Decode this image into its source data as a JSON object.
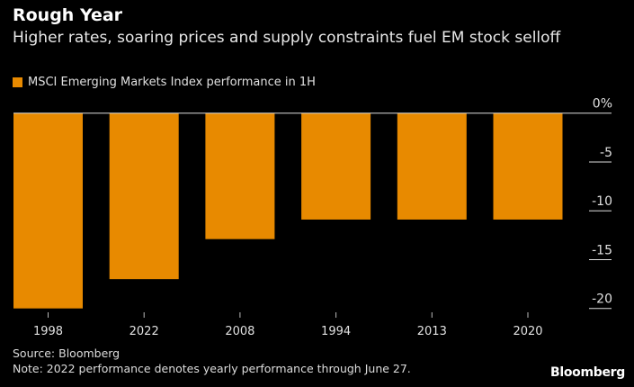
{
  "chart_data": {
    "type": "bar",
    "title": "Rough Year",
    "subtitle": "Higher rates, soaring prices and supply constraints fuel EM stock selloff",
    "categories": [
      "1998",
      "2022",
      "2008",
      "1994",
      "2013",
      "2020"
    ],
    "series": [
      {
        "name": "MSCI Emerging Markets Index performance in 1H",
        "values": [
          -20.0,
          -17.0,
          -12.9,
          -10.9,
          -10.9,
          -10.9
        ],
        "color": "#e88a00"
      }
    ],
    "ylim": [
      -20,
      0
    ],
    "yticks": [
      0,
      -5,
      -10,
      -15,
      -20
    ],
    "ytick_labels": [
      "0%",
      "-5",
      "-10",
      "-15",
      "-20"
    ],
    "y_axis_side": "right",
    "legend": "top-left",
    "grid": false
  },
  "footer": {
    "source": "Source: Bloomberg",
    "note": "Note: 2022 performance denotes yearly performance through June 27.",
    "logo": "Bloomberg"
  }
}
